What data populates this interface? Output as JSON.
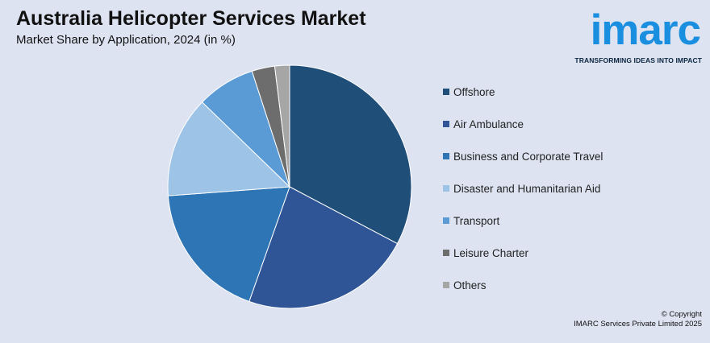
{
  "header": {
    "title": "Australia Helicopter Services Market",
    "subtitle": "Market Share by Application, 2024 (in %)"
  },
  "logo": {
    "word": "imarc",
    "tagline": "TRANSFORMING IDEAS INTO IMPACT",
    "color": "#1a8fe0"
  },
  "chart_data": {
    "type": "pie",
    "title": "Australia Helicopter Services Market",
    "subtitle": "Market Share by Application, 2024 (in %)",
    "categories": [
      "Offshore",
      "Air Ambulance",
      "Business and Corporate Travel",
      "Disaster and Humanitarian Aid",
      "Transport",
      "Leisure Charter",
      "Others"
    ],
    "values": [
      33.4,
      23.1,
      18.8,
      13.7,
      7.9,
      3.1,
      2.0
    ],
    "colors": [
      "#1f4e79",
      "#2f5597",
      "#2e75b6",
      "#9dc3e6",
      "#5b9bd5",
      "#6d6d6d",
      "#a6a6a6"
    ],
    "legend_position": "right"
  },
  "footer": {
    "copyright_line1": "© Copyright",
    "copyright_line2": "IMARC Services Private Limited 2025"
  }
}
